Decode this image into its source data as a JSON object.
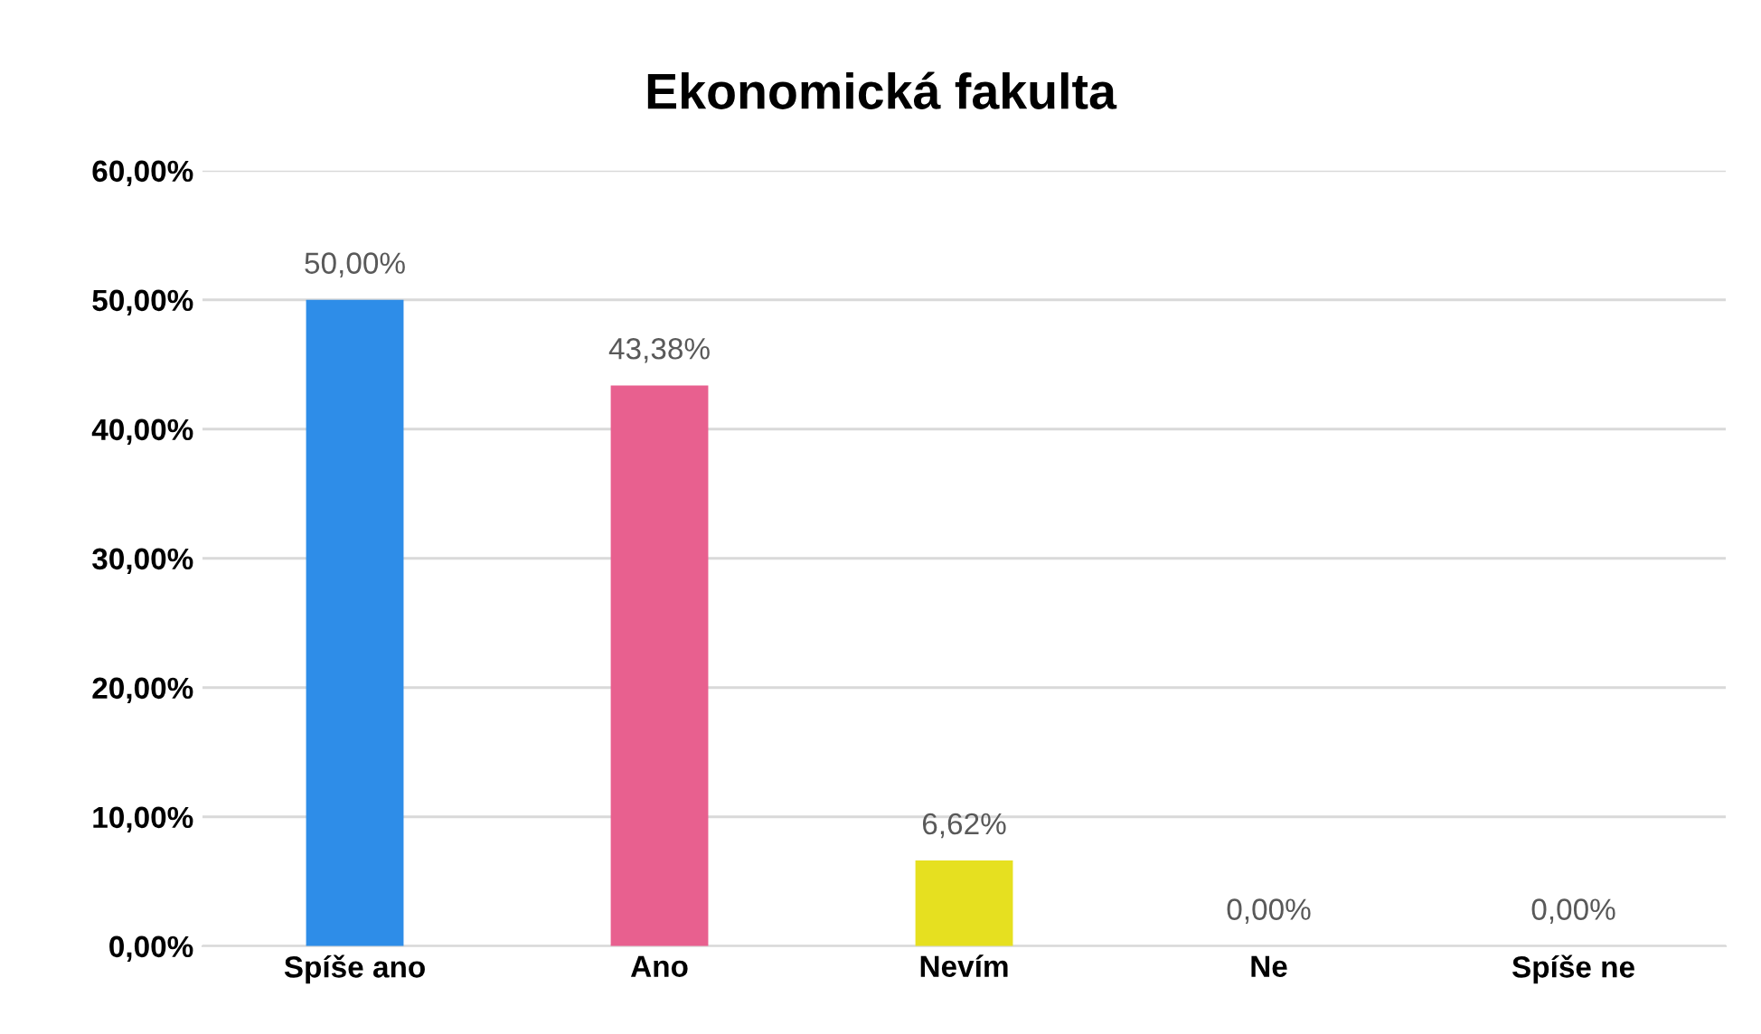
{
  "chart_data": {
    "type": "bar",
    "title": "Ekonomická fakulta",
    "categories": [
      "Spíše ano",
      "Ano",
      "Nevím",
      "Ne",
      "Spíše ne"
    ],
    "values": [
      50.0,
      43.38,
      6.62,
      0.0,
      0.0
    ],
    "value_labels": [
      "50,00%",
      "43,38%",
      "6,62%",
      "0,00%",
      "0,00%"
    ],
    "colors": [
      "#2e8de8",
      "#e8608f",
      "#e6e020",
      null,
      null
    ],
    "ylim": [
      0,
      60
    ],
    "yticks": [
      {
        "value": 0,
        "label": "0,00%"
      },
      {
        "value": 10,
        "label": "10,00%"
      },
      {
        "value": 20,
        "label": "20,00%"
      },
      {
        "value": 30,
        "label": "30,00%"
      },
      {
        "value": 40,
        "label": "40,00%"
      },
      {
        "value": 50,
        "label": "50,00%"
      },
      {
        "value": 60,
        "label": "60,00%"
      }
    ],
    "grid": "y"
  }
}
